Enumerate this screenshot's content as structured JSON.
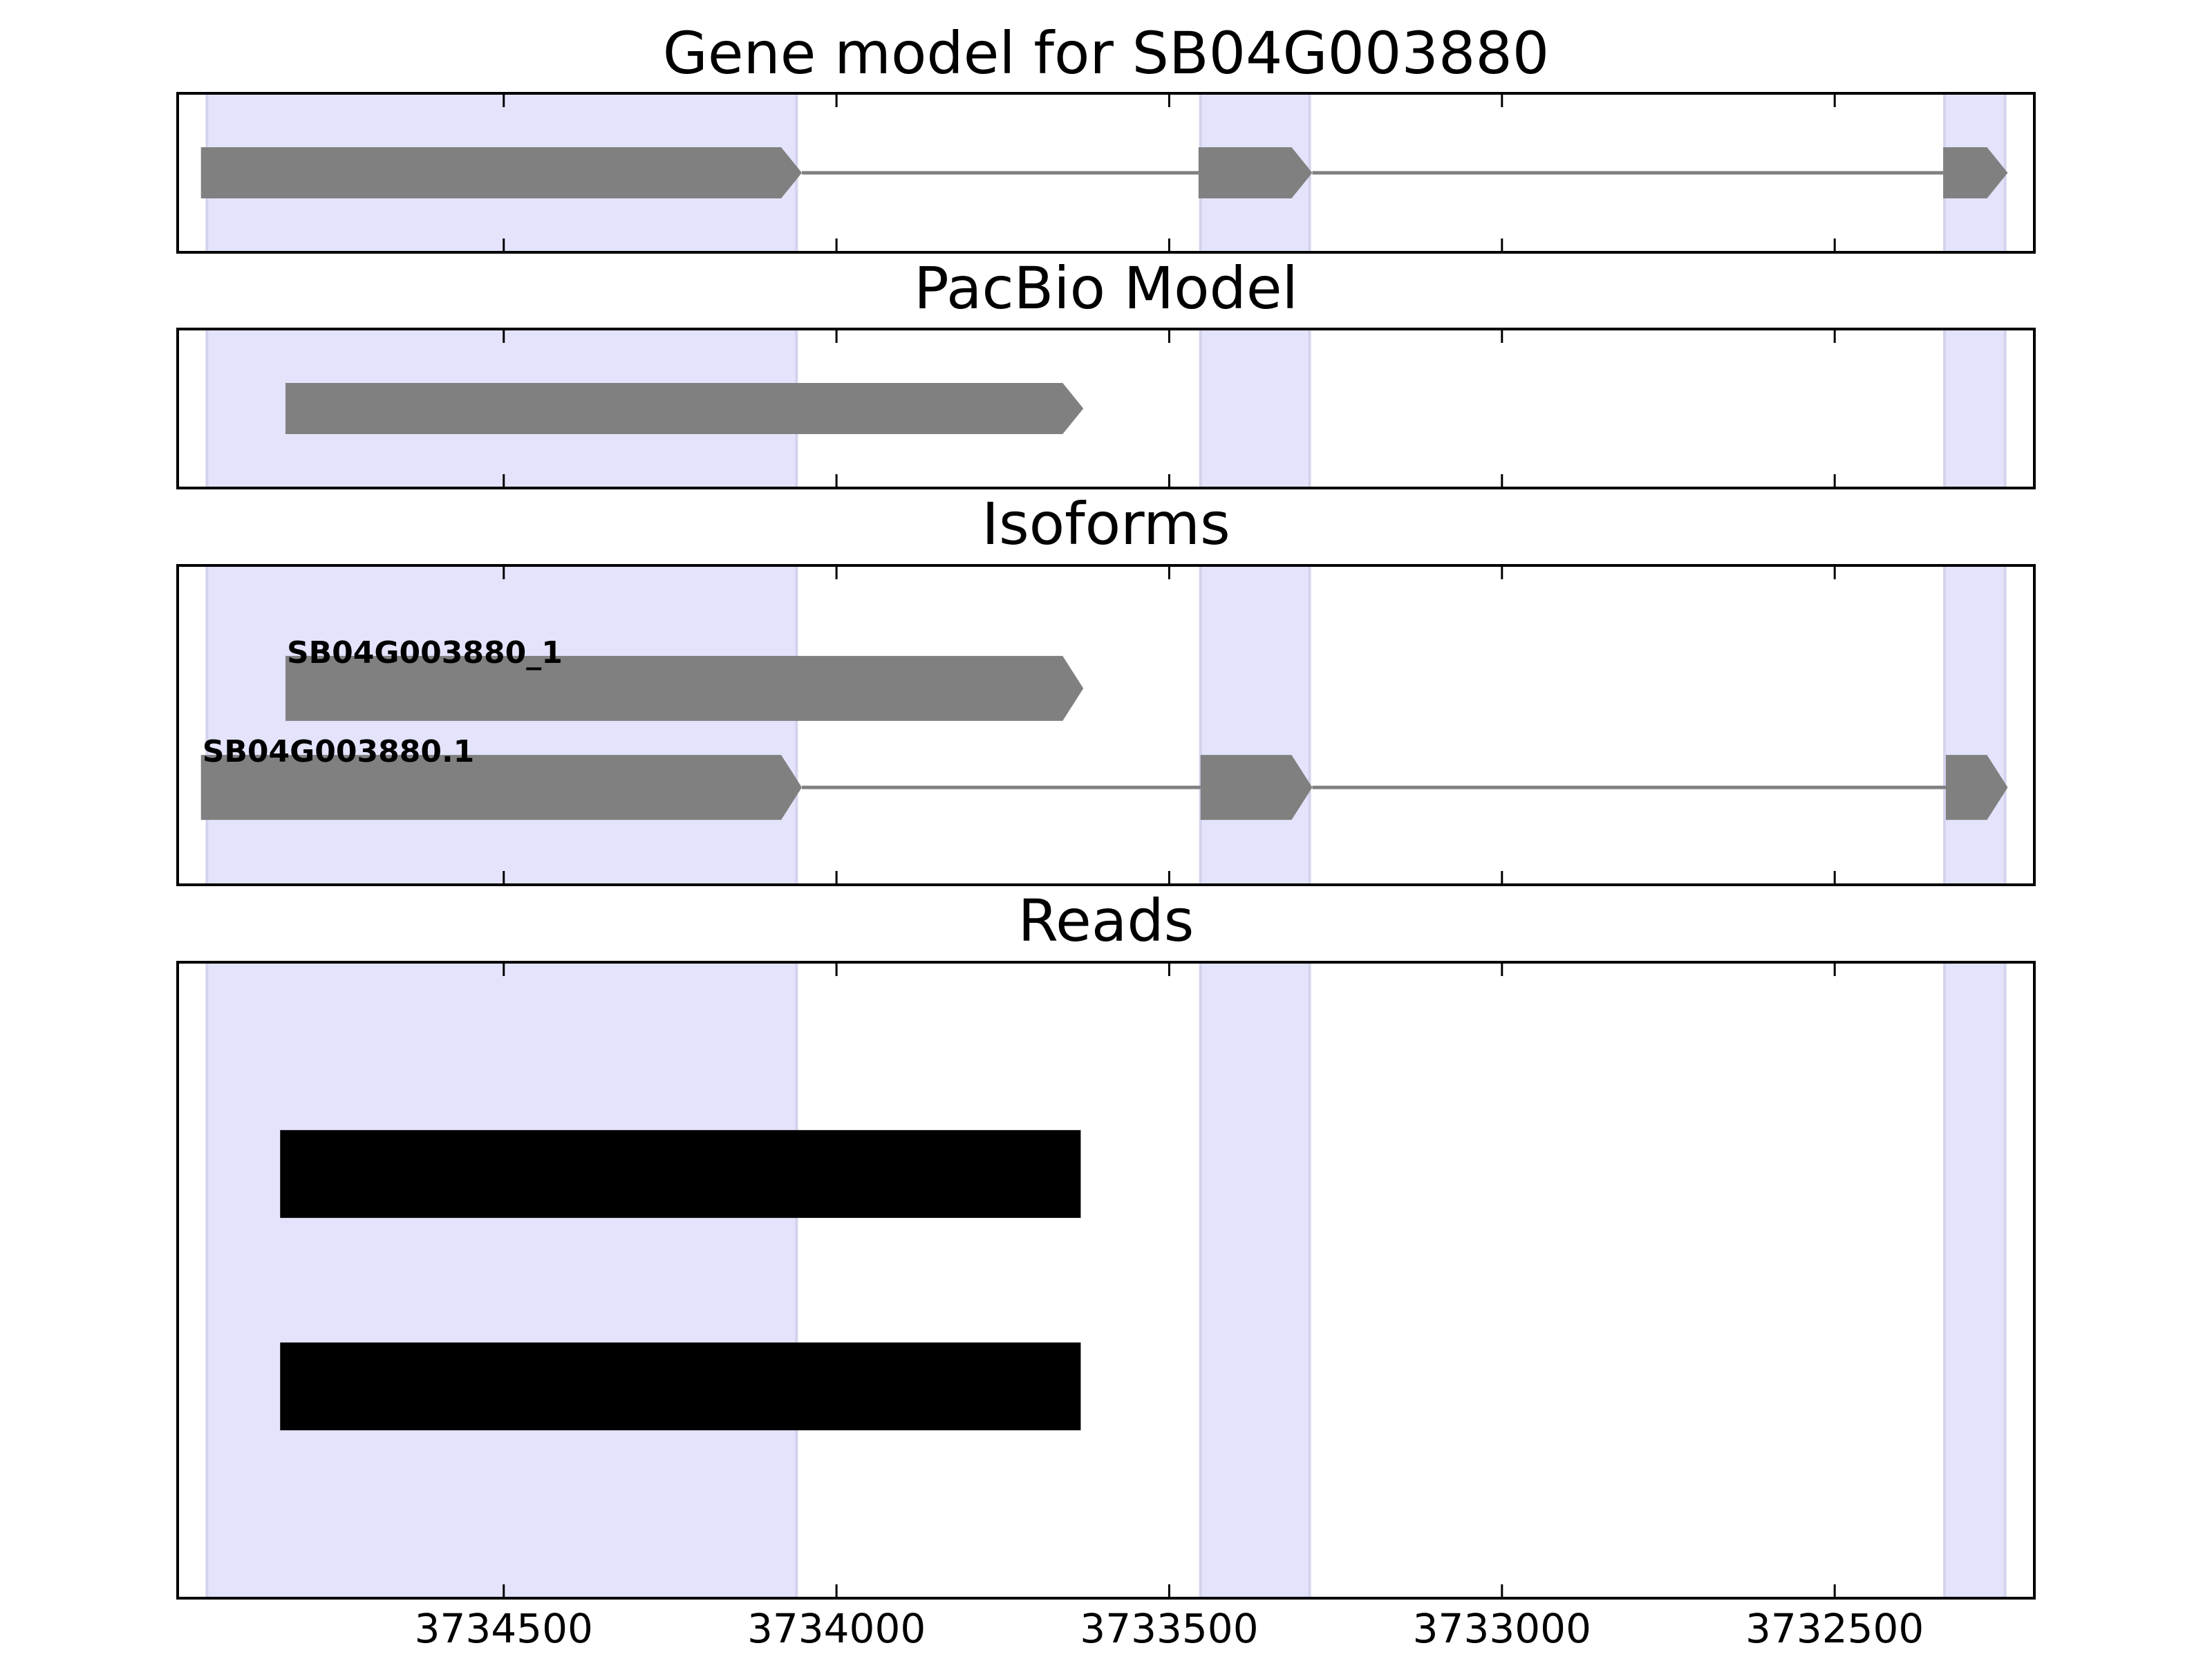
{
  "chart_data": [
    {
      "type": "gene_model",
      "title": "Gene model for SB04G003880",
      "xlim": [
        3734990,
        3732200
      ],
      "xticks": [
        3734500,
        3734000,
        3733500,
        3733000,
        3732500
      ],
      "highlights": [
        [
          3734946,
          3734060
        ],
        [
          3733453,
          3733289
        ],
        [
          3732335,
          3732244
        ]
      ],
      "highlight_color": "#e3e3fc",
      "color": "#808080",
      "transcripts": [
        {
          "exons": [
            [
              3734955,
              3734052
            ],
            [
              3733456,
              3733285
            ],
            [
              3732337,
              3732240
            ]
          ]
        }
      ]
    },
    {
      "type": "gene_model",
      "title": "PacBio Model",
      "xlim": [
        3734990,
        3732200
      ],
      "xticks": [
        3734500,
        3734000,
        3733500,
        3733000,
        3732500
      ],
      "highlights": [
        [
          3734946,
          3734060
        ],
        [
          3733453,
          3733289
        ],
        [
          3732335,
          3732244
        ]
      ],
      "highlight_color": "#e3e3fc",
      "color": "#808080",
      "transcripts": [
        {
          "exons": [
            [
              3734828,
              3733629
            ]
          ]
        }
      ]
    },
    {
      "type": "gene_model",
      "title": "Isoforms",
      "xlim": [
        3734990,
        3732200
      ],
      "xticks": [
        3734500,
        3734000,
        3733500,
        3733000,
        3732500
      ],
      "highlights": [
        [
          3734946,
          3734060
        ],
        [
          3733453,
          3733289
        ],
        [
          3732335,
          3732244
        ]
      ],
      "highlight_color": "#e3e3fc",
      "color": "#808080",
      "transcripts": [
        {
          "name": "SB04G003880_1",
          "exons": [
            [
              3734828,
              3733629
            ]
          ]
        },
        {
          "name": "SB04G003880.1",
          "exons": [
            [
              3734955,
              3734052
            ],
            [
              3733453,
              3733285
            ],
            [
              3732333,
              3732240
            ]
          ]
        }
      ]
    },
    {
      "type": "reads",
      "title": "Reads",
      "xlim": [
        3734990,
        3732200
      ],
      "xticks": [
        3734500,
        3734000,
        3733500,
        3733000,
        3732500
      ],
      "highlights": [
        [
          3734946,
          3734060
        ],
        [
          3733453,
          3733289
        ],
        [
          3732335,
          3732244
        ]
      ],
      "highlight_color": "#e3e3fc",
      "color": "#000000",
      "reads": [
        [
          3734836,
          3733633
        ],
        [
          3734836,
          3733633
        ]
      ]
    }
  ]
}
